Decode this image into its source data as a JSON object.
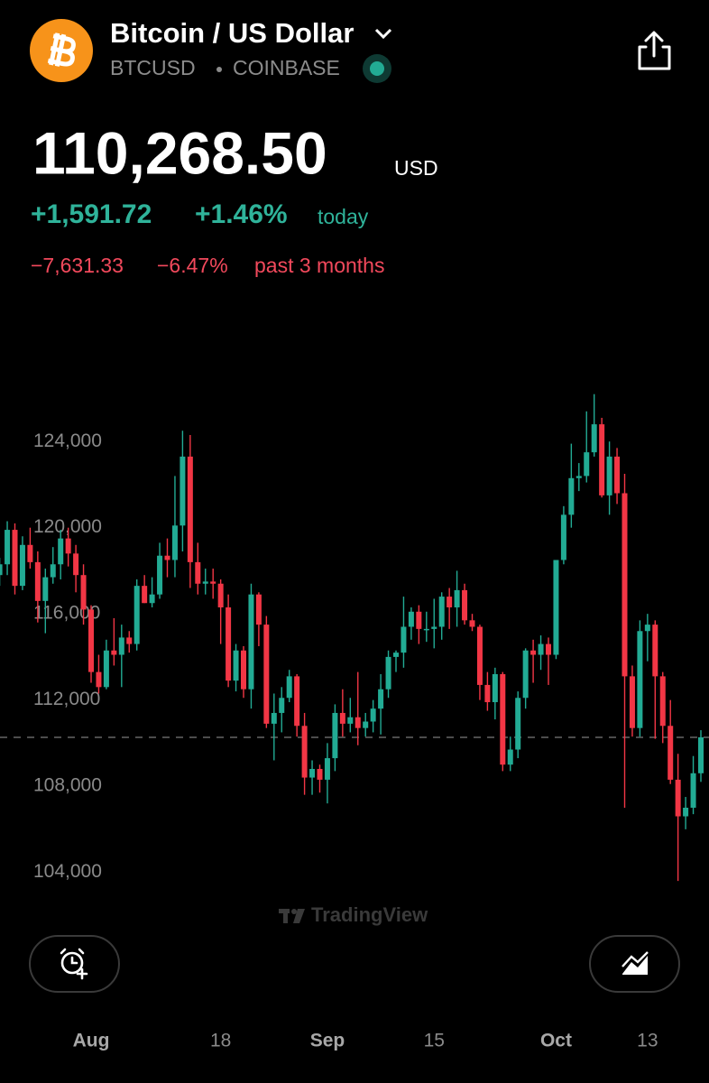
{
  "header": {
    "title": "Bitcoin / US Dollar",
    "symbol": "BTCUSD",
    "exchange": "COINBASE",
    "price": "110,268.50",
    "currency": "USD",
    "change_today": "+1,591.72",
    "change_today_pct": "+1.46%",
    "today_label": "today",
    "change_period": "−7,631.33",
    "change_period_pct": "−6.47%",
    "period_label": "past 3 months",
    "watermark": "TradingView"
  },
  "chart_data": {
    "type": "candlestick",
    "categories": [
      null,
      null,
      null,
      null,
      null,
      null,
      null,
      null,
      null,
      null,
      null,
      null,
      "Aug",
      null,
      null,
      null,
      null,
      null,
      null,
      null,
      null,
      null,
      null,
      null,
      null,
      null,
      null,
      null,
      null,
      "18",
      null,
      null,
      null,
      null,
      null,
      null,
      null,
      null,
      null,
      null,
      null,
      null,
      null,
      "Sep",
      null,
      null,
      null,
      null,
      null,
      null,
      null,
      null,
      null,
      null,
      null,
      null,
      null,
      "15",
      null,
      null,
      null,
      null,
      null,
      null,
      null,
      null,
      null,
      null,
      null,
      null,
      null,
      null,
      null,
      "Oct",
      null,
      null,
      null,
      null,
      null,
      null,
      null,
      null,
      null,
      null,
      null,
      "13",
      null,
      null,
      null,
      null,
      null,
      null,
      null
    ],
    "open": [
      117800,
      118300,
      119900,
      117300,
      119200,
      118400,
      116600,
      117700,
      118300,
      119500,
      118800,
      117800,
      116200,
      113300,
      112600,
      114300,
      114100,
      114900,
      114600,
      117300,
      116500,
      116900,
      118700,
      118500,
      120100,
      123300,
      118400,
      117400,
      117500,
      117400,
      116300,
      112900,
      114300,
      112500,
      116900,
      115500,
      110900,
      111400,
      112100,
      113100,
      110800,
      108400,
      108800,
      108300,
      109300,
      111400,
      110900,
      111200,
      110700,
      111000,
      111600,
      112500,
      114000,
      114200,
      115400,
      116100,
      115300,
      115300,
      115400,
      116800,
      116300,
      117100,
      115700,
      115400,
      112700,
      111900,
      113200,
      109000,
      109700,
      112100,
      114300,
      114100,
      114600,
      114100,
      118500,
      120600,
      122300,
      122400,
      123500,
      124800,
      121500,
      123300,
      121600,
      113100,
      110700,
      115200,
      115500,
      113100,
      110800,
      108300,
      106600,
      107000,
      108600
    ],
    "high": [
      118600,
      120300,
      120200,
      119600,
      120000,
      118900,
      118100,
      119100,
      119900,
      120000,
      119200,
      118300,
      116400,
      114100,
      114800,
      115800,
      115500,
      115200,
      117600,
      117800,
      117700,
      119300,
      119500,
      122400,
      124500,
      124300,
      119300,
      118100,
      118100,
      117600,
      116900,
      114600,
      114500,
      117400,
      117000,
      115900,
      112300,
      112600,
      113400,
      113200,
      111400,
      109200,
      109000,
      110000,
      111800,
      112500,
      112100,
      113300,
      111400,
      112000,
      113200,
      114300,
      114300,
      116800,
      116300,
      116400,
      116100,
      116700,
      117000,
      117200,
      118000,
      117400,
      116000,
      115500,
      113300,
      113500,
      113300,
      110300,
      112400,
      114400,
      114800,
      115000,
      114900,
      118500,
      121000,
      123900,
      123000,
      125400,
      126200,
      125100,
      124000,
      123700,
      122500,
      113600,
      115700,
      116000,
      115700,
      113300,
      112000,
      109500,
      107500,
      109400,
      110600
    ],
    "low": [
      117300,
      117800,
      116900,
      117100,
      118100,
      115600,
      115100,
      117400,
      117600,
      118200,
      117000,
      115500,
      112800,
      112300,
      112500,
      113600,
      112600,
      114200,
      114300,
      116500,
      116300,
      116700,
      117700,
      117700,
      118900,
      117200,
      116900,
      116900,
      116700,
      114600,
      112600,
      112400,
      112100,
      111600,
      114500,
      110700,
      109200,
      110500,
      111900,
      110300,
      107600,
      107600,
      107700,
      107200,
      108700,
      110300,
      110500,
      109900,
      110300,
      110500,
      110400,
      112100,
      113300,
      113500,
      114800,
      114600,
      114700,
      114400,
      114800,
      115300,
      115400,
      115500,
      115200,
      112000,
      111500,
      111100,
      108700,
      108700,
      109300,
      111600,
      112800,
      113400,
      112700,
      113900,
      118300,
      120000,
      121700,
      122100,
      123300,
      121400,
      120600,
      121100,
      107000,
      110300,
      110300,
      113800,
      110200,
      110000,
      108100,
      103600,
      106000,
      106700,
      108200
    ],
    "close": [
      118300,
      119900,
      117300,
      119200,
      118400,
      116600,
      117700,
      118300,
      119500,
      118800,
      117800,
      116200,
      113300,
      112600,
      114300,
      114100,
      114900,
      114600,
      117300,
      116500,
      116900,
      118700,
      118500,
      120100,
      123300,
      118400,
      117400,
      117500,
      117400,
      116300,
      112900,
      114300,
      112500,
      116900,
      115500,
      110900,
      111400,
      112100,
      113100,
      110800,
      108400,
      108800,
      108300,
      109300,
      111400,
      110900,
      111200,
      110700,
      111000,
      111600,
      112500,
      114000,
      114200,
      115400,
      116100,
      115300,
      115300,
      115400,
      116800,
      116300,
      117100,
      115700,
      115400,
      112700,
      111900,
      113200,
      109000,
      109700,
      112100,
      114300,
      114100,
      114600,
      114100,
      118500,
      120600,
      122300,
      122400,
      123500,
      124800,
      121500,
      123300,
      121600,
      113100,
      110700,
      115200,
      115500,
      113100,
      110800,
      108300,
      106600,
      107000,
      108600,
      110268.5
    ],
    "up_color": "#22ab94",
    "down_color": "#f23645",
    "ylim": [
      102600,
      126900
    ],
    "yticks": [
      {
        "value": 104000,
        "label": "104,000"
      },
      {
        "value": 108000,
        "label": "108,000"
      },
      {
        "value": 112000,
        "label": "112,000"
      },
      {
        "value": 116000,
        "label": "116,000"
      },
      {
        "value": 120000,
        "label": "120,000"
      },
      {
        "value": 124000,
        "label": "124,000"
      }
    ],
    "grid": false
  }
}
